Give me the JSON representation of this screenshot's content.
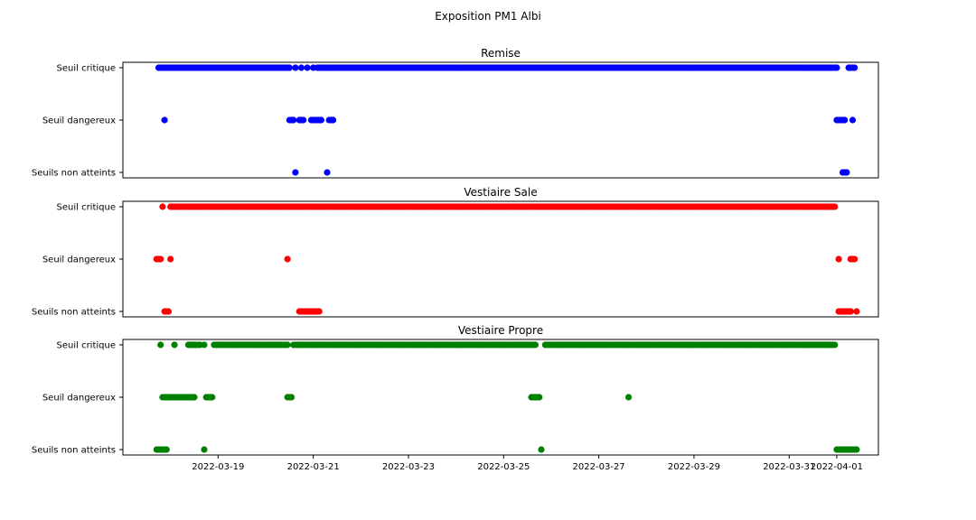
{
  "figure": {
    "suptitle": "Exposition PM1 Albi"
  },
  "chart_data": [
    {
      "type": "scatter",
      "title": "Remise",
      "color": "#0000ff",
      "x_axis": "shared date axis, ticks shown on bottom panel only",
      "y_categories": [
        "Seuils non atteints",
        "Seuil dangereux",
        "Seuil critique"
      ],
      "series": [
        {
          "category": "Seuil critique",
          "runs": [
            [
              "2022-03-17 18:00",
              "2022-03-20 12:00"
            ],
            [
              "2022-03-21 02:00",
              "2022-03-21 07:00"
            ],
            [
              "2022-03-21 07:00",
              "2022-04-01 00:00"
            ],
            [
              "2022-04-01 06:00",
              "2022-04-01 09:00"
            ]
          ],
          "points": [
            "2022-03-20 15:00",
            "2022-03-20 18:00",
            "2022-03-20 21:00",
            "2022-03-21 00:00"
          ]
        },
        {
          "category": "Seuil dangereux",
          "runs": [
            [
              "2022-03-20 12:00",
              "2022-03-20 14:00"
            ],
            [
              "2022-03-20 17:00",
              "2022-03-20 19:00"
            ],
            [
              "2022-03-20 23:00",
              "2022-03-21 04:00"
            ],
            [
              "2022-03-21 08:00",
              "2022-03-21 10:00"
            ],
            [
              "2022-04-01 00:00",
              "2022-04-01 04:00"
            ]
          ],
          "points": [
            "2022-03-17 21:00",
            "2022-04-01 08:00"
          ]
        },
        {
          "category": "Seuils non atteints",
          "runs": [
            [
              "2022-04-01 03:00",
              "2022-04-01 05:00"
            ]
          ],
          "points": [
            "2022-03-20 15:00",
            "2022-03-21 07:00"
          ]
        }
      ]
    },
    {
      "type": "scatter",
      "title": "Vestiaire Sale",
      "color": "#ff0000",
      "x_axis": "shared date axis, ticks shown on bottom panel only",
      "y_categories": [
        "Seuils non atteints",
        "Seuil dangereux",
        "Seuil critique"
      ],
      "series": [
        {
          "category": "Seuil critique",
          "runs": [
            [
              "2022-03-18 00:00",
              "2022-03-31 23:00"
            ]
          ],
          "points": [
            "2022-03-17 20:00"
          ]
        },
        {
          "category": "Seuil dangereux",
          "runs": [
            [
              "2022-03-17 17:00",
              "2022-03-17 19:00"
            ],
            [
              "2022-04-01 07:00",
              "2022-04-01 09:00"
            ]
          ],
          "points": [
            "2022-03-18 00:00",
            "2022-03-20 11:00",
            "2022-04-01 01:00"
          ]
        },
        {
          "category": "Seuils non atteints",
          "runs": [
            [
              "2022-03-17 21:00",
              "2022-03-17 23:00"
            ],
            [
              "2022-03-20 17:00",
              "2022-03-21 03:00"
            ],
            [
              "2022-04-01 01:00",
              "2022-04-01 07:00"
            ]
          ],
          "points": [
            "2022-04-01 10:00"
          ]
        }
      ]
    },
    {
      "type": "scatter",
      "title": "Vestiaire Propre",
      "color": "#008000",
      "x_axis": "shared date axis",
      "x_ticks": [
        "2022-03-19",
        "2022-03-21",
        "2022-03-23",
        "2022-03-25",
        "2022-03-27",
        "2022-03-29",
        "2022-03-31",
        "2022-04-01"
      ],
      "y_categories": [
        "Seuils non atteints",
        "Seuil dangereux",
        "Seuil critique"
      ],
      "series": [
        {
          "category": "Seuil critique",
          "runs": [
            [
              "2022-03-18 09:00",
              "2022-03-18 15:00"
            ],
            [
              "2022-03-18 22:00",
              "2022-03-20 11:00"
            ],
            [
              "2022-03-20 14:00",
              "2022-03-25 16:00"
            ],
            [
              "2022-03-25 21:00",
              "2022-03-31 23:00"
            ]
          ],
          "points": [
            "2022-03-17 19:00",
            "2022-03-18 02:00",
            "2022-03-18 17:00"
          ]
        },
        {
          "category": "Seuil dangereux",
          "runs": [
            [
              "2022-03-17 20:00",
              "2022-03-18 12:00"
            ],
            [
              "2022-03-18 18:00",
              "2022-03-18 21:00"
            ],
            [
              "2022-03-20 11:00",
              "2022-03-20 13:00"
            ],
            [
              "2022-03-25 14:00",
              "2022-03-25 17:00"
            ]
          ],
          "points": [
            "2022-03-25 18:00",
            "2022-03-27 15:00"
          ]
        },
        {
          "category": "Seuils non atteints",
          "runs": [
            [
              "2022-03-17 17:00",
              "2022-03-17 22:00"
            ],
            [
              "2022-04-01 00:00",
              "2022-04-01 10:00"
            ]
          ],
          "points": [
            "2022-03-18 17:00",
            "2022-03-25 19:00"
          ]
        }
      ]
    }
  ]
}
